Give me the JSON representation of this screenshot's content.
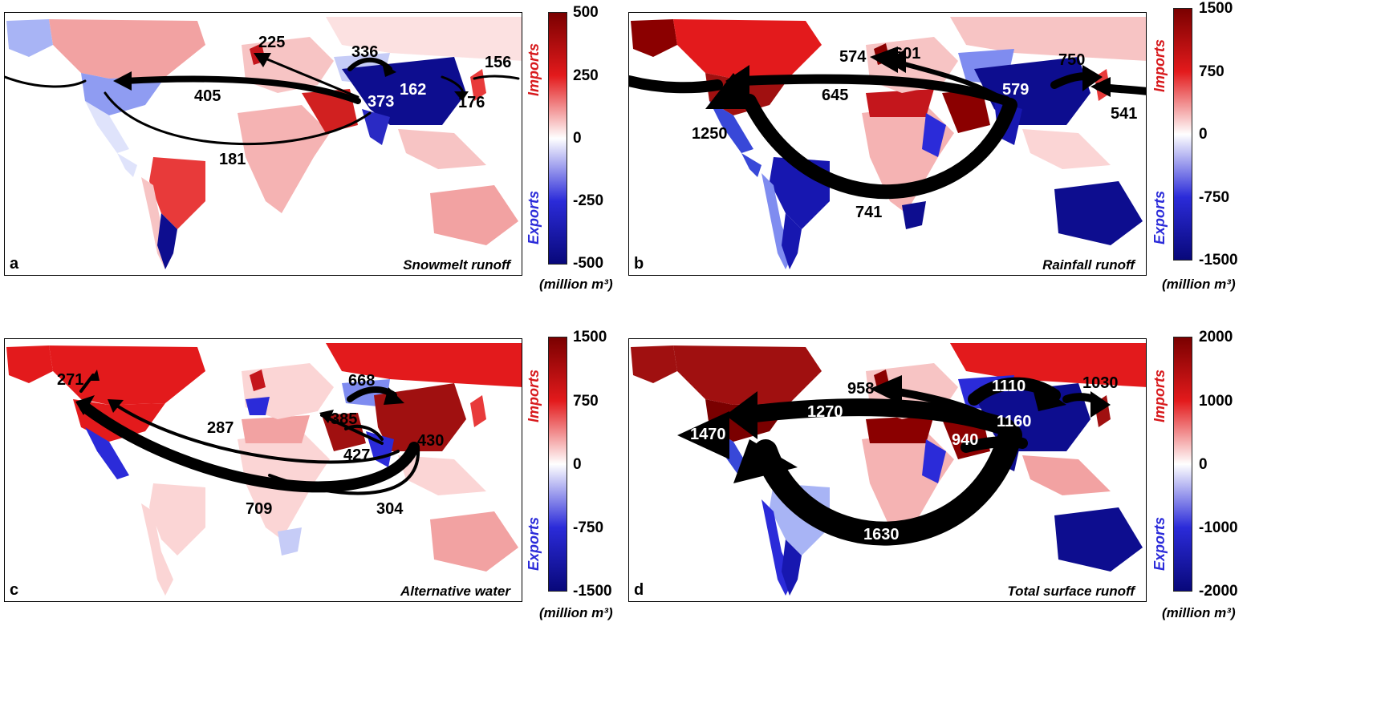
{
  "colors": {
    "imports": "#d7191c",
    "exports": "#2b2bd9",
    "dark_red": "#8b0000",
    "red": "#e31a1c",
    "pink": "#f4a6a6",
    "light_pink": "#fbd5d5",
    "light_blue": "#a8b4f5",
    "blue": "#3848d8",
    "dark_blue": "#0a0a8a"
  },
  "panels": [
    {
      "letter": "a",
      "title": "Snowmelt runoff",
      "colorbar": {
        "ticks": [
          "500",
          "250",
          "0",
          "-250",
          "-500"
        ],
        "imports_label": "Imports",
        "exports_label": "Exports",
        "unit": "(million m³)"
      },
      "flows": [
        "225",
        "336",
        "156",
        "405",
        "162",
        "373",
        "176",
        "181"
      ]
    },
    {
      "letter": "b",
      "title": "Rainfall runoff",
      "colorbar": {
        "ticks": [
          "1500",
          "750",
          "0",
          "-750",
          "-1500"
        ],
        "imports_label": "Imports",
        "exports_label": "Exports",
        "unit": "(million m³)"
      },
      "flows": [
        "574",
        "601",
        "750",
        "645",
        "579",
        "541",
        "1250",
        "741"
      ]
    },
    {
      "letter": "c",
      "title": "Alternative water",
      "colorbar": {
        "ticks": [
          "1500",
          "750",
          "0",
          "-750",
          "-1500"
        ],
        "imports_label": "Imports",
        "exports_label": "Exports",
        "unit": "(million m³)"
      },
      "flows": [
        "271",
        "668",
        "287",
        "385",
        "430",
        "427",
        "709",
        "304"
      ]
    },
    {
      "letter": "d",
      "title": "Total surface runoff",
      "colorbar": {
        "ticks": [
          "2000",
          "1000",
          "0",
          "-1000",
          "-2000"
        ],
        "imports_label": "Imports",
        "exports_label": "Exports",
        "unit": "(million m³)"
      },
      "flows": [
        "958",
        "1110",
        "1030",
        "1270",
        "1160",
        "1470",
        "940",
        "1630"
      ]
    }
  ]
}
